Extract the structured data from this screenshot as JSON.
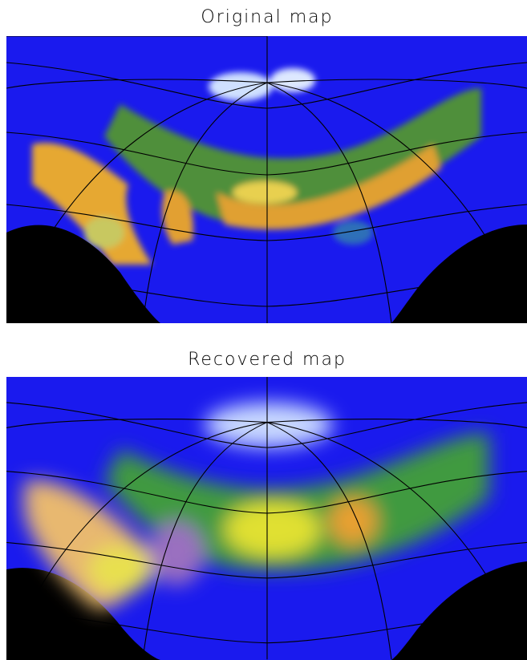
{
  "panels": [
    {
      "title": "Original map"
    },
    {
      "title": "Recovered map"
    }
  ]
}
